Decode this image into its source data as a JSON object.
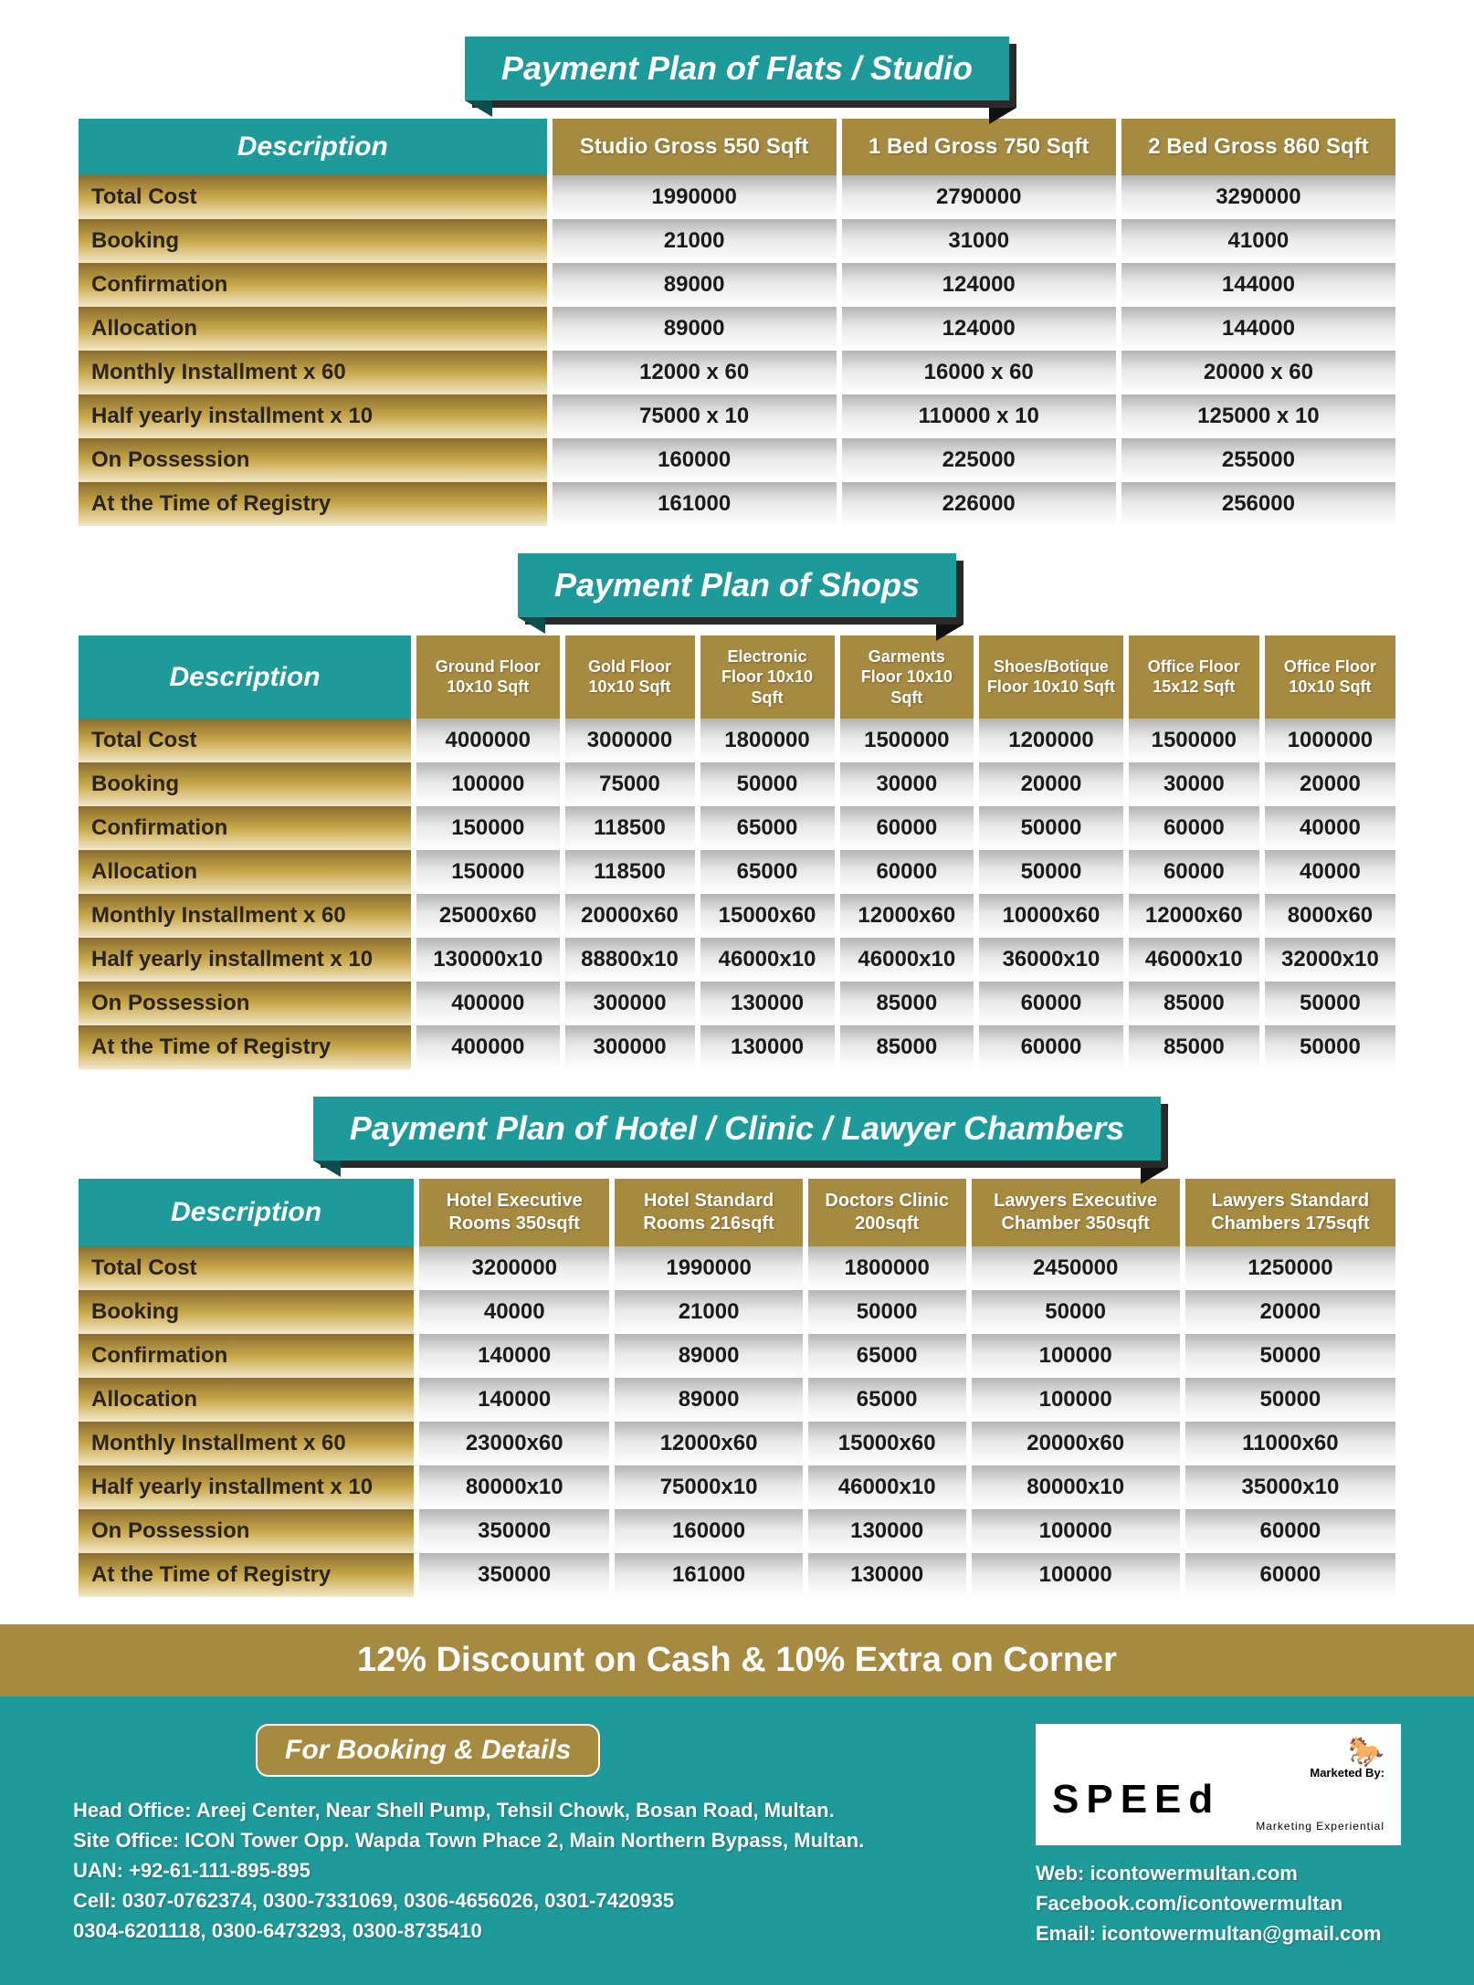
{
  "colors": {
    "teal": "#1e9a9a",
    "gold": "#a68a3f",
    "gold_grad_dark": "#8a6d2f",
    "gold_grad_mid": "#c9a84a",
    "gold_grad_light": "#f2e8c8",
    "grey_grad_dark": "#b5b5b5",
    "grey_grad_light": "#ffffff",
    "shadow": "#2a2a2a",
    "white": "#ffffff",
    "text_dark": "#1a1a1a"
  },
  "typography": {
    "title_fontsize": 36,
    "col_head_fontsize": 22,
    "cell_fontsize": 24,
    "discount_fontsize": 38,
    "footer_fontsize": 22
  },
  "desc_header": "Description",
  "row_labels": [
    "Total Cost",
    "Booking",
    "Confirmation",
    "Allocation",
    "Monthly Installment x 60",
    "Half yearly installment x 10",
    "On Possession",
    "At the Time of Registry"
  ],
  "tables": [
    {
      "title": "Payment Plan of Flats / Studio",
      "desc_width": "36%",
      "col_fontsize": 24,
      "columns": [
        "Studio Gross 550 Sqft",
        "1 Bed Gross 750 Sqft",
        "2 Bed Gross 860 Sqft"
      ],
      "rows": [
        [
          "1990000",
          "2790000",
          "3290000"
        ],
        [
          "21000",
          "31000",
          "41000"
        ],
        [
          "89000",
          "124000",
          "144000"
        ],
        [
          "89000",
          "124000",
          "144000"
        ],
        [
          "12000 x 60",
          "16000 x 60",
          "20000 x 60"
        ],
        [
          "75000 x 10",
          "110000 x 10",
          "125000 x 10"
        ],
        [
          "160000",
          "225000",
          "255000"
        ],
        [
          "161000",
          "226000",
          "256000"
        ]
      ]
    },
    {
      "title": "Payment Plan of Shops",
      "desc_width": "26%",
      "col_fontsize": 18,
      "columns": [
        "Ground Floor 10x10 Sqft",
        "Gold Floor 10x10 Sqft",
        "Electronic Floor 10x10 Sqft",
        "Garments Floor 10x10 Sqft",
        "Shoes/Botique Floor 10x10 Sqft",
        "Office Floor 15x12 Sqft",
        "Office Floor 10x10 Sqft"
      ],
      "rows": [
        [
          "4000000",
          "3000000",
          "1800000",
          "1500000",
          "1200000",
          "1500000",
          "1000000"
        ],
        [
          "100000",
          "75000",
          "50000",
          "30000",
          "20000",
          "30000",
          "20000"
        ],
        [
          "150000",
          "118500",
          "65000",
          "60000",
          "50000",
          "60000",
          "40000"
        ],
        [
          "150000",
          "118500",
          "65000",
          "60000",
          "50000",
          "60000",
          "40000"
        ],
        [
          "25000x60",
          "20000x60",
          "15000x60",
          "12000x60",
          "10000x60",
          "12000x60",
          "8000x60"
        ],
        [
          "130000x10",
          "88800x10",
          "46000x10",
          "46000x10",
          "36000x10",
          "46000x10",
          "32000x10"
        ],
        [
          "400000",
          "300000",
          "130000",
          "85000",
          "60000",
          "85000",
          "50000"
        ],
        [
          "400000",
          "300000",
          "130000",
          "85000",
          "60000",
          "85000",
          "50000"
        ]
      ]
    },
    {
      "title": "Payment Plan of Hotel / Clinic / Lawyer Chambers",
      "desc_width": "26%",
      "col_fontsize": 20,
      "columns": [
        "Hotel Executive Rooms 350sqft",
        "Hotel Standard Rooms 216sqft",
        "Doctors Clinic 200sqft",
        "Lawyers Executive Chamber 350sqft",
        "Lawyers Standard Chambers 175sqft"
      ],
      "rows": [
        [
          "3200000",
          "1990000",
          "1800000",
          "2450000",
          "1250000"
        ],
        [
          "40000",
          "21000",
          "50000",
          "50000",
          "20000"
        ],
        [
          "140000",
          "89000",
          "65000",
          "100000",
          "50000"
        ],
        [
          "140000",
          "89000",
          "65000",
          "100000",
          "50000"
        ],
        [
          "23000x60",
          "12000x60",
          "15000x60",
          "20000x60",
          "11000x60"
        ],
        [
          "80000x10",
          "75000x10",
          "46000x10",
          "80000x10",
          "35000x10"
        ],
        [
          "350000",
          "160000",
          "130000",
          "100000",
          "60000"
        ],
        [
          "350000",
          "161000",
          "130000",
          "100000",
          "60000"
        ]
      ]
    }
  ],
  "discount_text": "12% Discount on Cash  & 10% Extra on Corner",
  "footer": {
    "booking_label": "For Booking & Details",
    "head_office": "Head Office: Areej Center, Near Shell Pump, Tehsil Chowk, Bosan Road, Multan.",
    "site_office": "Site Office: ICON Tower Opp. Wapda Town Phace 2, Main Northern Bypass, Multan.",
    "uan": "UAN:  +92-61-111-895-895",
    "cell": "Cell: 0307-0762374, 0300-7331069, 0306-4656026, 0301-7420935",
    "cell2": "0304-6201118, 0300-6473293, 0300-8735410",
    "logo_top": "Marketed By:",
    "logo_main": "SPEEd",
    "logo_sub": "Marketing Experiential",
    "web": "Web: icontowermultan.com",
    "fb": "Facebook.com/icontowermultan",
    "email": "Email: icontowermultan@gmail.com"
  }
}
